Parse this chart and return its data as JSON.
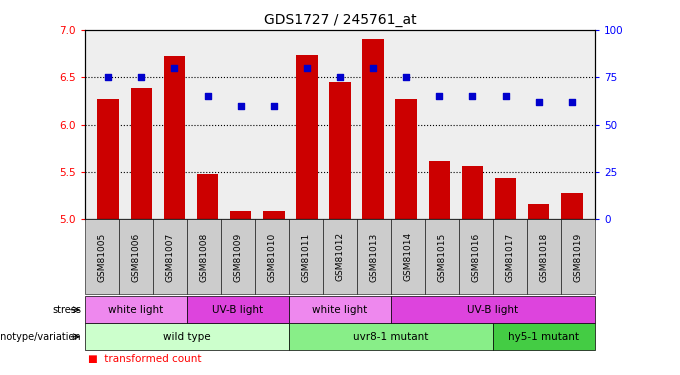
{
  "title": "GDS1727 / 245761_at",
  "samples": [
    "GSM81005",
    "GSM81006",
    "GSM81007",
    "GSM81008",
    "GSM81009",
    "GSM81010",
    "GSM81011",
    "GSM81012",
    "GSM81013",
    "GSM81014",
    "GSM81015",
    "GSM81016",
    "GSM81017",
    "GSM81018",
    "GSM81019"
  ],
  "bar_values": [
    6.27,
    6.39,
    6.73,
    5.48,
    5.09,
    5.09,
    6.74,
    6.45,
    6.9,
    6.27,
    5.62,
    5.56,
    5.44,
    5.16,
    5.28
  ],
  "dot_values": [
    75,
    75,
    80,
    65,
    60,
    60,
    80,
    75,
    80,
    75,
    65,
    65,
    65,
    62,
    62
  ],
  "ylim_left": [
    5.0,
    7.0
  ],
  "ylim_right": [
    0,
    100
  ],
  "yticks_left": [
    5.0,
    5.5,
    6.0,
    6.5,
    7.0
  ],
  "yticks_right": [
    0,
    25,
    50,
    75,
    100
  ],
  "bar_color": "#cc0000",
  "dot_color": "#0000cc",
  "bar_width": 0.65,
  "genotype_row": [
    {
      "label": "wild type",
      "start": 0,
      "end": 6,
      "color": "#ccffcc"
    },
    {
      "label": "uvr8-1 mutant",
      "start": 6,
      "end": 12,
      "color": "#88ee88"
    },
    {
      "label": "hy5-1 mutant",
      "start": 12,
      "end": 15,
      "color": "#44cc44"
    }
  ],
  "stress_row": [
    {
      "label": "white light",
      "start": 0,
      "end": 3,
      "color": "#ee88ee"
    },
    {
      "label": "UV-B light",
      "start": 3,
      "end": 6,
      "color": "#dd44dd"
    },
    {
      "label": "white light",
      "start": 6,
      "end": 9,
      "color": "#ee88ee"
    },
    {
      "label": "UV-B light",
      "start": 9,
      "end": 15,
      "color": "#dd44dd"
    }
  ],
  "tick_fontsize": 6.5,
  "title_fontsize": 10,
  "annot_fontsize": 7.5
}
